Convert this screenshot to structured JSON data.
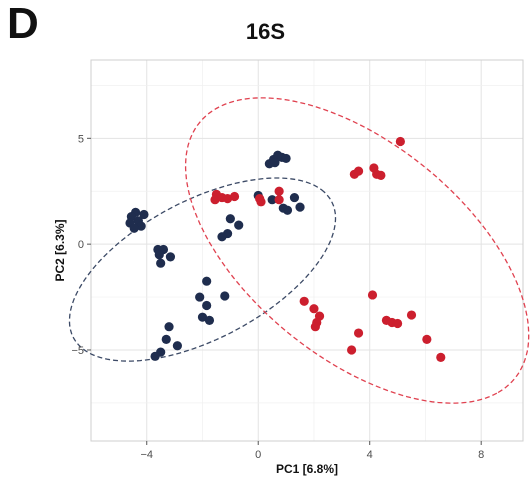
{
  "panel_label": "D",
  "chart_data": {
    "type": "scatter",
    "title": "16S",
    "xlabel": "PC1  [6.8%]",
    "ylabel": "PC2  [6.3%]",
    "xlim": [
      -6,
      9.5
    ],
    "ylim": [
      -9.3,
      8.7
    ],
    "xticks": [
      -4,
      0,
      4,
      8
    ],
    "yticks": [
      -5,
      0,
      5
    ],
    "grid": true,
    "series": [
      {
        "color": "#1f2d4e",
        "points": [
          [
            -4.4,
            1.5
          ],
          [
            -4.1,
            1.4
          ],
          [
            -4.55,
            1.3
          ],
          [
            -4.3,
            1.1
          ],
          [
            -4.6,
            1.0
          ],
          [
            -4.2,
            0.85
          ],
          [
            -4.45,
            0.75
          ],
          [
            -3.6,
            -0.25
          ],
          [
            -3.4,
            -0.25
          ],
          [
            -3.55,
            -0.5
          ],
          [
            -3.15,
            -0.6
          ],
          [
            -3.5,
            -0.9
          ],
          [
            -3.3,
            -4.5
          ],
          [
            -3.2,
            -3.9
          ],
          [
            -3.5,
            -5.1
          ],
          [
            -3.7,
            -5.3
          ],
          [
            -2.9,
            -4.8
          ],
          [
            -2.1,
            -2.5
          ],
          [
            -1.85,
            -2.9
          ],
          [
            -2.0,
            -3.45
          ],
          [
            -1.75,
            -3.6
          ],
          [
            -1.85,
            -1.75
          ],
          [
            -1.2,
            -2.45
          ],
          [
            -1.1,
            0.5
          ],
          [
            -1.3,
            0.35
          ],
          [
            -1.0,
            1.2
          ],
          [
            -0.7,
            0.9
          ],
          [
            0.0,
            2.3
          ],
          [
            0.4,
            3.8
          ],
          [
            0.55,
            4.0
          ],
          [
            0.7,
            4.2
          ],
          [
            0.85,
            4.1
          ],
          [
            1.0,
            4.05
          ],
          [
            0.6,
            3.85
          ],
          [
            0.5,
            2.1
          ],
          [
            0.9,
            1.7
          ],
          [
            1.05,
            1.6
          ],
          [
            1.3,
            2.2
          ],
          [
            1.5,
            1.75
          ]
        ]
      },
      {
        "color": "#cc1f2e",
        "points": [
          [
            -1.5,
            2.35
          ],
          [
            -1.55,
            2.1
          ],
          [
            -1.3,
            2.2
          ],
          [
            -1.1,
            2.15
          ],
          [
            -0.85,
            2.25
          ],
          [
            0.05,
            2.15
          ],
          [
            0.1,
            2.0
          ],
          [
            0.75,
            2.5
          ],
          [
            0.75,
            2.1
          ],
          [
            3.45,
            3.3
          ],
          [
            3.6,
            3.45
          ],
          [
            4.15,
            3.6
          ],
          [
            4.25,
            3.3
          ],
          [
            4.4,
            3.25
          ],
          [
            5.1,
            4.85
          ],
          [
            1.65,
            -2.7
          ],
          [
            2.0,
            -3.05
          ],
          [
            2.2,
            -3.4
          ],
          [
            2.1,
            -3.7
          ],
          [
            2.05,
            -3.9
          ],
          [
            3.35,
            -5.0
          ],
          [
            3.6,
            -4.2
          ],
          [
            4.1,
            -2.4
          ],
          [
            4.6,
            -3.6
          ],
          [
            4.8,
            -3.7
          ],
          [
            5.0,
            -3.75
          ],
          [
            5.5,
            -3.35
          ],
          [
            6.05,
            -4.5
          ],
          [
            6.55,
            -5.35
          ]
        ]
      }
    ],
    "ellipses": [
      {
        "color": "#3c4a66",
        "center": [
          -2.0,
          -1.2
        ],
        "rx": 5.7,
        "ry": 3.0,
        "rotation_deg": 40
      },
      {
        "color": "#e04250",
        "center": [
          3.55,
          -0.3
        ],
        "rx": 8.4,
        "ry": 4.4,
        "rotation_deg": -53
      }
    ]
  }
}
